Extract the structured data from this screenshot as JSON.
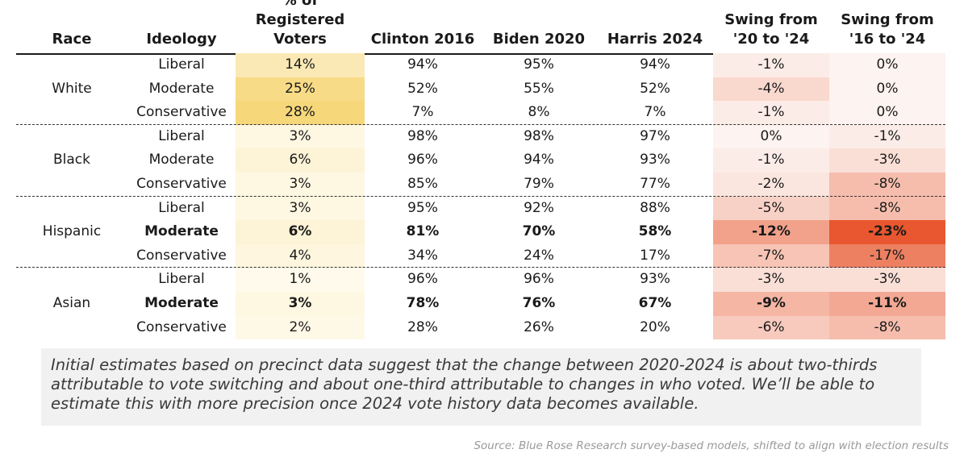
{
  "headers": {
    "race": "Race",
    "ideology": "Ideology",
    "share": "% of Registered Voters",
    "clinton": "Clinton 2016",
    "biden": "Biden 2020",
    "harris": "Harris 2024",
    "swing20": "Swing from '20 to '24",
    "swing16": "Swing from '16 to '24"
  },
  "chart_data": {
    "type": "table",
    "columns": [
      "Race",
      "Ideology",
      "% of Registered Voters",
      "Clinton 2016",
      "Biden 2020",
      "Harris 2024",
      "Swing from '20 to '24",
      "Swing from '16 to '24"
    ],
    "groups": [
      {
        "race": "White",
        "rows": [
          {
            "ideology": "Liberal",
            "share": "14%",
            "clinton": "94%",
            "biden": "95%",
            "harris": "94%",
            "swing20": "-1%",
            "swing16": "0%",
            "bold": false
          },
          {
            "ideology": "Moderate",
            "share": "25%",
            "clinton": "52%",
            "biden": "55%",
            "harris": "52%",
            "swing20": "-4%",
            "swing16": "0%",
            "bold": false
          },
          {
            "ideology": "Conservative",
            "share": "28%",
            "clinton": "7%",
            "biden": "8%",
            "harris": "7%",
            "swing20": "-1%",
            "swing16": "0%",
            "bold": false
          }
        ]
      },
      {
        "race": "Black",
        "rows": [
          {
            "ideology": "Liberal",
            "share": "3%",
            "clinton": "98%",
            "biden": "98%",
            "harris": "97%",
            "swing20": "0%",
            "swing16": "-1%",
            "bold": false
          },
          {
            "ideology": "Moderate",
            "share": "6%",
            "clinton": "96%",
            "biden": "94%",
            "harris": "93%",
            "swing20": "-1%",
            "swing16": "-3%",
            "bold": false
          },
          {
            "ideology": "Conservative",
            "share": "3%",
            "clinton": "85%",
            "biden": "79%",
            "harris": "77%",
            "swing20": "-2%",
            "swing16": "-8%",
            "bold": false
          }
        ]
      },
      {
        "race": "Hispanic",
        "rows": [
          {
            "ideology": "Liberal",
            "share": "3%",
            "clinton": "95%",
            "biden": "92%",
            "harris": "88%",
            "swing20": "-5%",
            "swing16": "-8%",
            "bold": false
          },
          {
            "ideology": "Moderate",
            "share": "6%",
            "clinton": "81%",
            "biden": "70%",
            "harris": "58%",
            "swing20": "-12%",
            "swing16": "-23%",
            "bold": true
          },
          {
            "ideology": "Conservative",
            "share": "4%",
            "clinton": "34%",
            "biden": "24%",
            "harris": "17%",
            "swing20": "-7%",
            "swing16": "-17%",
            "bold": false
          }
        ]
      },
      {
        "race": "Asian",
        "rows": [
          {
            "ideology": "Liberal",
            "share": "1%",
            "clinton": "96%",
            "biden": "96%",
            "harris": "93%",
            "swing20": "-3%",
            "swing16": "-3%",
            "bold": false
          },
          {
            "ideology": "Moderate",
            "share": "3%",
            "clinton": "78%",
            "biden": "76%",
            "harris": "67%",
            "swing20": "-9%",
            "swing16": "-11%",
            "bold": true
          },
          {
            "ideology": "Conservative",
            "share": "2%",
            "clinton": "28%",
            "biden": "26%",
            "harris": "20%",
            "swing20": "-6%",
            "swing16": "-8%",
            "bold": false
          }
        ]
      }
    ]
  },
  "colors": {
    "share_scale": [
      "#fffbef",
      "#f6d77a"
    ],
    "swing_scale": [
      "#fdf3f0",
      "#e8572f"
    ]
  },
  "note": "Initial estimates based on precinct data suggest that the change between 2020-2024 is about two-thirds attributable to vote switching and about one-third attributable to changes in who voted. We’ll be able to estimate this with more precision once 2024 vote history data becomes available.",
  "source": "Source: Blue Rose Research survey-based models, shifted to align with election results"
}
